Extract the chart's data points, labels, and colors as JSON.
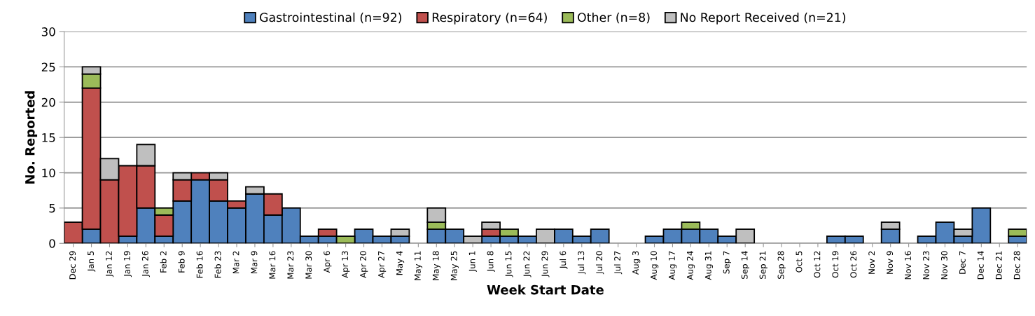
{
  "chart_data": {
    "type": "bar",
    "stacked": true,
    "xlabel": "Week Start Date",
    "ylabel": "No. Reported",
    "categories": [
      "Dec 29",
      "Jan 5",
      "Jan 12",
      "Jan 19",
      "Jan 26",
      "Feb 2",
      "Feb 9",
      "Feb 16",
      "Feb 23",
      "Mar 2",
      "Mar 9",
      "Mar 16",
      "Mar 23",
      "Mar 30",
      "Apr 6",
      "Apr 13",
      "Apr 20",
      "Apr 27",
      "May 4",
      "May 11",
      "May 18",
      "May 25",
      "Jun 1",
      "Jun 8",
      "Jun 15",
      "Jun 22",
      "Jun 29",
      "Jul 6",
      "Jul 13",
      "Jul 20",
      "Jul 27",
      "Aug 3",
      "Aug 10",
      "Aug 17",
      "Aug 24",
      "Aug 31",
      "Sep 7",
      "Sep 14",
      "Sep 21",
      "Sep 28",
      "Oct 5",
      "Oct 12",
      "Oct 19",
      "Oct 26",
      "Nov 2",
      "Nov 9",
      "Nov 16",
      "Nov 23",
      "Nov 30",
      "Dec 7",
      "Dec 14",
      "Dec 21",
      "Dec 28"
    ],
    "series": [
      {
        "name": "Gastrointestinal (n=92)",
        "color": "#4f81bd",
        "values": [
          0,
          2,
          0,
          1,
          5,
          1,
          6,
          9,
          6,
          5,
          7,
          4,
          5,
          1,
          1,
          0,
          2,
          1,
          1,
          0,
          2,
          2,
          0,
          1,
          1,
          1,
          0,
          2,
          1,
          2,
          0,
          0,
          1,
          2,
          2,
          2,
          1,
          0,
          0,
          0,
          0,
          0,
          1,
          1,
          0,
          2,
          0,
          1,
          3,
          1,
          5,
          0,
          1
        ]
      },
      {
        "name": "Respiratory (n=64)",
        "color": "#c0504d",
        "values": [
          3,
          20,
          9,
          10,
          6,
          3,
          3,
          1,
          3,
          1,
          0,
          3,
          0,
          0,
          1,
          0,
          0,
          0,
          0,
          0,
          0,
          0,
          0,
          1,
          0,
          0,
          0,
          0,
          0,
          0,
          0,
          0,
          0,
          0,
          0,
          0,
          0,
          0,
          0,
          0,
          0,
          0,
          0,
          0,
          0,
          0,
          0,
          0,
          0,
          0,
          0,
          0,
          0
        ]
      },
      {
        "name": "Other (n=8)",
        "color": "#9bbb59",
        "values": [
          0,
          2,
          0,
          0,
          0,
          1,
          0,
          0,
          0,
          0,
          0,
          0,
          0,
          0,
          0,
          1,
          0,
          0,
          0,
          0,
          1,
          0,
          0,
          0,
          1,
          0,
          0,
          0,
          0,
          0,
          0,
          0,
          0,
          0,
          1,
          0,
          0,
          0,
          0,
          0,
          0,
          0,
          0,
          0,
          0,
          0,
          0,
          0,
          0,
          0,
          0,
          0,
          1
        ]
      },
      {
        "name": "No Report Received (n=21)",
        "color": "#bfbfbf",
        "values": [
          0,
          1,
          3,
          0,
          3,
          0,
          1,
          0,
          1,
          0,
          1,
          0,
          0,
          0,
          0,
          0,
          0,
          0,
          1,
          0,
          2,
          0,
          1,
          1,
          0,
          0,
          2,
          0,
          0,
          0,
          0,
          0,
          0,
          0,
          0,
          0,
          0,
          2,
          0,
          0,
          0,
          0,
          0,
          0,
          0,
          1,
          0,
          0,
          0,
          1,
          0,
          0,
          0
        ]
      }
    ],
    "ylim": [
      0,
      30
    ],
    "yticks": [
      0,
      5,
      10,
      15,
      20,
      25,
      30
    ],
    "grid": "y",
    "legend": "top"
  }
}
